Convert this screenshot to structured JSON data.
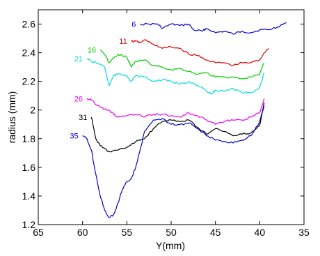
{
  "chart_data": {
    "type": "line",
    "title": "",
    "xlabel": "Y(mm)",
    "ylabel": "radius (mm)",
    "xlim": [
      65,
      35
    ],
    "ylim": [
      1.2,
      2.7
    ],
    "x_reversed": true,
    "grid": false,
    "legend": "none",
    "xticks": [
      65,
      60,
      55,
      50,
      45,
      40,
      35
    ],
    "yticks": [
      1.2,
      1.4,
      1.6,
      1.8,
      2.0,
      2.2,
      2.4,
      2.6
    ],
    "xtick_labels": [
      "65",
      "60",
      "55",
      "50",
      "45",
      "40",
      "35"
    ],
    "ytick_labels": [
      "1.2",
      "1.4",
      "1.6",
      "1.8",
      "2",
      "2.2",
      "2.4",
      "2.6"
    ],
    "series": [
      {
        "label": "6",
        "color": "#0000cc",
        "x": [
          53.5,
          52.5,
          51.5,
          51.0,
          50.0,
          49.0,
          48.0,
          47.5,
          46.5,
          46.0,
          45.0,
          44.0,
          43.0,
          42.0,
          41.0,
          40.0,
          39.0,
          38.0,
          37.0
        ],
        "y": [
          2.6,
          2.6,
          2.6,
          2.57,
          2.6,
          2.59,
          2.6,
          2.56,
          2.55,
          2.57,
          2.54,
          2.55,
          2.53,
          2.55,
          2.54,
          2.56,
          2.56,
          2.58,
          2.61
        ]
      },
      {
        "label": "11",
        "color": "#dd0000",
        "x": [
          54.5,
          54.0,
          53.5,
          53.0,
          52.0,
          51.0,
          50.0,
          49.0,
          48.0,
          47.0,
          46.0,
          45.0,
          44.0,
          43.0,
          42.0,
          41.0,
          40.0,
          39.5,
          39.0
        ],
        "y": [
          2.48,
          2.48,
          2.47,
          2.49,
          2.46,
          2.43,
          2.44,
          2.43,
          2.39,
          2.38,
          2.35,
          2.33,
          2.33,
          2.31,
          2.33,
          2.33,
          2.35,
          2.4,
          2.43
        ]
      },
      {
        "label": "16",
        "color": "#00cc00",
        "x": [
          58.0,
          57.5,
          57.0,
          56.0,
          55.0,
          54.5,
          54.0,
          53.0,
          52.0,
          51.0,
          50.0,
          49.0,
          48.0,
          47.0,
          46.0,
          45.0,
          44.0,
          43.0,
          42.0,
          41.0,
          40.0,
          39.5
        ],
        "y": [
          2.42,
          2.39,
          2.33,
          2.39,
          2.37,
          2.3,
          2.34,
          2.35,
          2.31,
          2.3,
          2.28,
          2.29,
          2.27,
          2.25,
          2.26,
          2.23,
          2.23,
          2.23,
          2.22,
          2.23,
          2.25,
          2.33
        ]
      },
      {
        "label": "21",
        "color": "#00dddd",
        "x": [
          59.5,
          59.0,
          58.0,
          57.5,
          57.0,
          56.5,
          56.0,
          55.0,
          54.5,
          54.0,
          53.0,
          52.0,
          51.0,
          50.0,
          49.0,
          48.0,
          47.0,
          46.0,
          45.5,
          45.0,
          44.0,
          43.0,
          42.0,
          41.0,
          40.0,
          39.5
        ],
        "y": [
          2.36,
          2.34,
          2.32,
          2.3,
          2.17,
          2.24,
          2.25,
          2.24,
          2.2,
          2.24,
          2.23,
          2.2,
          2.21,
          2.2,
          2.18,
          2.2,
          2.17,
          2.13,
          2.11,
          2.14,
          2.13,
          2.15,
          2.12,
          2.12,
          2.16,
          2.26
        ]
      },
      {
        "label": "26",
        "color": "#ee00ee",
        "x": [
          59.5,
          59.0,
          58.0,
          57.0,
          56.5,
          56.0,
          55.0,
          54.0,
          53.0,
          52.0,
          51.0,
          50.0,
          49.0,
          48.0,
          47.0,
          46.0,
          45.0,
          44.0,
          43.0,
          42.0,
          41.0,
          40.0,
          39.5
        ],
        "y": [
          2.08,
          2.07,
          2.02,
          2.0,
          1.97,
          1.95,
          1.96,
          1.97,
          1.95,
          1.97,
          1.97,
          1.96,
          1.95,
          1.98,
          1.96,
          1.93,
          1.9,
          1.92,
          1.93,
          1.93,
          1.95,
          1.98,
          2.08
        ]
      },
      {
        "label": "31",
        "color": "#000000",
        "x": [
          59.0,
          58.5,
          58.0,
          57.5,
          57.0,
          56.0,
          55.0,
          54.0,
          53.0,
          52.0,
          51.0,
          50.0,
          49.0,
          48.0,
          47.0,
          46.0,
          45.0,
          44.0,
          43.0,
          42.0,
          41.0,
          40.0,
          39.5
        ],
        "y": [
          1.95,
          1.8,
          1.75,
          1.73,
          1.71,
          1.72,
          1.74,
          1.78,
          1.8,
          1.87,
          1.92,
          1.93,
          1.92,
          1.93,
          1.88,
          1.83,
          1.87,
          1.85,
          1.82,
          1.83,
          1.84,
          1.89,
          2.05
        ]
      },
      {
        "label": "35",
        "color": "#0000cc",
        "x": [
          60.0,
          59.5,
          59.0,
          58.5,
          58.0,
          57.5,
          57.0,
          56.5,
          56.0,
          55.5,
          55.0,
          54.5,
          54.0,
          53.5,
          53.0,
          52.0,
          51.0,
          50.0,
          49.0,
          48.0,
          47.0,
          46.0,
          45.0,
          44.0,
          43.0,
          42.0,
          41.0,
          40.0,
          39.5
        ],
        "y": [
          1.82,
          1.8,
          1.72,
          1.55,
          1.4,
          1.3,
          1.25,
          1.27,
          1.35,
          1.45,
          1.5,
          1.52,
          1.6,
          1.72,
          1.85,
          1.93,
          1.94,
          1.9,
          1.9,
          1.91,
          1.87,
          1.82,
          1.79,
          1.78,
          1.77,
          1.79,
          1.82,
          1.92,
          2.03
        ]
      }
    ]
  }
}
